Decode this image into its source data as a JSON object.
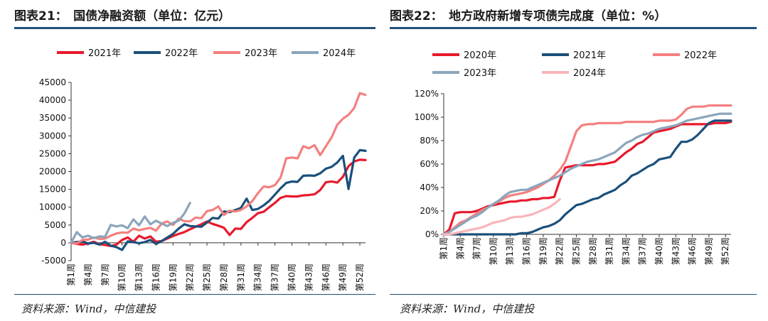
{
  "left": {
    "title": "图表21：　国债净融资额（单位：亿元）",
    "source": "资料来源：Wind，中信建投"
  },
  "right": {
    "title": "图表22：　地方政府新增专项债完成度（单位：%）",
    "source": "资料来源：Wind，中信建投"
  },
  "colors": {
    "accent": "#1f4e79"
  },
  "chart_data": [
    {
      "type": "line",
      "title": "国债净融资额（单位：亿元）",
      "ylim": [
        -5000,
        45000
      ],
      "yticks": [
        -5000,
        0,
        5000,
        10000,
        15000,
        20000,
        25000,
        30000,
        35000,
        40000,
        45000
      ],
      "ytick_labels": [
        "-5000",
        "0",
        "5000",
        "10000",
        "15000",
        "20000",
        "25000",
        "30000",
        "35000",
        "40000",
        "45000"
      ],
      "x_range": [
        1,
        53
      ],
      "xticks": [
        1,
        4,
        7,
        10,
        13,
        16,
        19,
        22,
        25,
        28,
        31,
        34,
        37,
        40,
        43,
        46,
        49,
        52
      ],
      "xtick_labels": [
        "第1周",
        "第4周",
        "第7周",
        "第10周",
        "第13周",
        "第16周",
        "第19周",
        "第22周",
        "第25周",
        "第28周",
        "第31周",
        "第34周",
        "第37周",
        "第40周",
        "第43周",
        "第46周",
        "第49周",
        "第52周"
      ],
      "legend_position": "top",
      "series": [
        {
          "name": "2021年",
          "color": "#e8192c",
          "x": [
            1,
            2,
            3,
            4,
            5,
            6,
            7,
            8,
            9,
            10,
            11,
            12,
            13,
            14,
            15,
            16,
            17,
            18,
            19,
            20,
            21,
            22,
            23,
            24,
            25,
            26,
            27,
            28,
            29,
            30,
            31,
            32,
            33,
            34,
            35,
            36,
            37,
            38,
            39,
            40,
            41,
            42,
            43,
            44,
            45,
            46,
            47,
            48,
            49,
            50,
            51,
            52,
            53
          ],
          "y": [
            0,
            -300,
            -500,
            -200,
            300,
            -400,
            -600,
            -900,
            -500,
            800,
            1500,
            300,
            2000,
            1200,
            1800,
            300,
            500,
            1200,
            1900,
            2500,
            3000,
            3800,
            4500,
            5200,
            6000,
            5300,
            4800,
            4200,
            2200,
            4000,
            3900,
            5800,
            7000,
            8300,
            8700,
            10000,
            11200,
            12600,
            13100,
            13000,
            13000,
            13300,
            13400,
            13600,
            14800,
            17000,
            17200,
            16900,
            18500,
            21500,
            22800,
            23300,
            23200
          ]
        },
        {
          "name": "2022年",
          "color": "#1b4f7a",
          "x": [
            1,
            2,
            3,
            4,
            5,
            6,
            7,
            8,
            9,
            10,
            11,
            12,
            13,
            14,
            15,
            16,
            17,
            18,
            19,
            20,
            21,
            22,
            23,
            24,
            25,
            26,
            27,
            28,
            29,
            30,
            31,
            32,
            33,
            34,
            35,
            36,
            37,
            38,
            39,
            40,
            41,
            42,
            43,
            44,
            45,
            46,
            47,
            48,
            49,
            50,
            51,
            52,
            53
          ],
          "y": [
            0,
            200,
            400,
            -200,
            0,
            -500,
            300,
            -800,
            -1200,
            -2000,
            400,
            200,
            -100,
            200,
            800,
            -300,
            500,
            1500,
            2500,
            4000,
            5200,
            4700,
            4600,
            4500,
            5700,
            7000,
            6800,
            8800,
            8600,
            9200,
            9800,
            12400,
            9200,
            9500,
            10500,
            11800,
            13500,
            15300,
            16800,
            17200,
            17100,
            18800,
            18900,
            18800,
            19500,
            20800,
            21300,
            22500,
            24400,
            15100,
            23900,
            26000,
            25800
          ]
        },
        {
          "name": "2023年",
          "color": "#f4807f",
          "x": [
            1,
            2,
            3,
            4,
            5,
            6,
            7,
            8,
            9,
            10,
            11,
            12,
            13,
            14,
            15,
            16,
            17,
            18,
            19,
            20,
            21,
            22,
            23,
            24,
            25,
            26,
            27,
            28,
            29,
            30,
            31,
            32,
            33,
            34,
            35,
            36,
            37,
            38,
            39,
            40,
            41,
            42,
            43,
            44,
            45,
            46,
            47,
            48,
            49,
            50,
            51,
            52,
            53
          ],
          "y": [
            0,
            -200,
            800,
            900,
            1500,
            1100,
            1200,
            2000,
            2600,
            2900,
            2800,
            4000,
            3500,
            3900,
            4200,
            3400,
            5400,
            6000,
            5000,
            6800,
            6100,
            6000,
            7100,
            6900,
            8900,
            9200,
            10200,
            7800,
            9000,
            8800,
            9200,
            10200,
            11700,
            13900,
            15800,
            15600,
            16200,
            18300,
            23700,
            23900,
            23700,
            27100,
            26500,
            27400,
            24600,
            27100,
            29500,
            33100,
            34800,
            35900,
            37800,
            42000,
            41500
          ]
        },
        {
          "name": "2024年",
          "color": "#8ba5bb",
          "x": [
            1,
            2,
            3,
            4,
            5,
            6,
            7,
            8,
            9,
            10,
            11,
            12,
            13,
            14,
            15,
            16,
            17,
            18,
            19,
            20,
            21,
            22
          ],
          "y": [
            0,
            3000,
            1500,
            2000,
            1300,
            1800,
            1700,
            5000,
            4600,
            4900,
            4100,
            6600,
            4900,
            7400,
            5200,
            6200,
            5400,
            4700,
            5600,
            6200,
            8200,
            11200
          ]
        }
      ]
    },
    {
      "type": "line",
      "title": "地方政府新增专项债完成度（单位：%）",
      "ylim": [
        0,
        120
      ],
      "yticks": [
        0,
        20,
        40,
        60,
        80,
        100,
        120
      ],
      "ytick_labels": [
        "0%",
        "20%",
        "40%",
        "60%",
        "80%",
        "100%",
        "120%"
      ],
      "x_range": [
        1,
        53
      ],
      "xticks": [
        1,
        4,
        7,
        10,
        13,
        16,
        19,
        22,
        25,
        28,
        31,
        34,
        37,
        40,
        43,
        46,
        49,
        52
      ],
      "xtick_labels": [
        "第1周",
        "第4周",
        "第7周",
        "第10周",
        "第13周",
        "第16周",
        "第19周",
        "第22周",
        "第25周",
        "第28周",
        "第31周",
        "第34周",
        "第37周",
        "第40周",
        "第43周",
        "第46周",
        "第49周",
        "第52周"
      ],
      "legend_position": "top",
      "series": [
        {
          "name": "2020年",
          "color": "#e8192c",
          "x": [
            1,
            2,
            3,
            4,
            5,
            6,
            7,
            8,
            9,
            10,
            11,
            12,
            13,
            14,
            15,
            16,
            17,
            18,
            19,
            20,
            21,
            22,
            23,
            24,
            25,
            26,
            27,
            28,
            29,
            30,
            31,
            32,
            33,
            34,
            35,
            36,
            37,
            38,
            39,
            40,
            41,
            42,
            43,
            44,
            45,
            46,
            47,
            48,
            49,
            50,
            51,
            52,
            53
          ],
          "y": [
            0,
            4,
            18,
            19,
            19,
            19,
            20,
            22,
            24,
            25,
            26,
            27,
            28,
            28,
            29,
            29,
            30,
            30,
            31,
            31,
            32,
            46,
            57,
            58,
            59,
            59,
            59,
            59,
            60,
            60,
            61,
            62,
            66,
            70,
            73,
            77,
            79,
            83,
            87,
            88,
            89,
            90,
            92,
            94,
            94,
            94,
            94,
            94,
            94,
            95,
            95,
            95,
            96
          ]
        },
        {
          "name": "2021年",
          "color": "#1b4f7a",
          "x": [
            1,
            2,
            3,
            4,
            5,
            6,
            7,
            8,
            9,
            10,
            11,
            12,
            13,
            14,
            15,
            16,
            17,
            18,
            19,
            20,
            21,
            22,
            23,
            24,
            25,
            26,
            27,
            28,
            29,
            30,
            31,
            32,
            33,
            34,
            35,
            36,
            37,
            38,
            39,
            40,
            41,
            42,
            43,
            44,
            45,
            46,
            47,
            48,
            49,
            50,
            51,
            52,
            53
          ],
          "y": [
            0,
            0,
            0,
            0,
            0,
            0,
            0,
            0,
            0,
            0,
            0,
            0,
            0,
            0,
            1,
            1,
            2,
            4,
            6,
            7,
            9,
            12,
            17,
            21,
            25,
            26,
            28,
            30,
            31,
            34,
            36,
            38,
            42,
            45,
            50,
            52,
            55,
            58,
            60,
            64,
            65,
            66,
            73,
            79,
            79,
            81,
            85,
            90,
            95,
            97,
            97,
            97,
            97
          ]
        },
        {
          "name": "2022年",
          "color": "#f4807f",
          "x": [
            1,
            2,
            3,
            4,
            5,
            6,
            7,
            8,
            9,
            10,
            11,
            12,
            13,
            14,
            15,
            16,
            17,
            18,
            19,
            20,
            21,
            22,
            23,
            24,
            25,
            26,
            27,
            28,
            29,
            30,
            31,
            32,
            33,
            34,
            35,
            36,
            37,
            38,
            39,
            40,
            41,
            42,
            43,
            44,
            45,
            46,
            47,
            48,
            49,
            50,
            51,
            52,
            53
          ],
          "y": [
            0,
            2,
            6,
            10,
            12,
            15,
            18,
            21,
            23,
            26,
            28,
            31,
            33,
            34,
            35,
            36,
            38,
            40,
            43,
            46,
            50,
            55,
            62,
            75,
            88,
            93,
            94,
            94,
            95,
            95,
            95,
            95,
            95,
            96,
            96,
            96,
            96,
            96,
            96,
            97,
            97,
            97,
            98,
            102,
            107,
            109,
            109,
            109,
            110,
            110,
            110,
            110,
            110
          ]
        },
        {
          "name": "2023年",
          "color": "#8ba5bb",
          "x": [
            1,
            2,
            3,
            4,
            5,
            6,
            7,
            8,
            9,
            10,
            11,
            12,
            13,
            14,
            15,
            16,
            17,
            18,
            19,
            20,
            21,
            22,
            23,
            24,
            25,
            26,
            27,
            28,
            29,
            30,
            31,
            32,
            33,
            34,
            35,
            36,
            37,
            38,
            39,
            40,
            41,
            42,
            43,
            44,
            45,
            46,
            47,
            48,
            49,
            50,
            51,
            52,
            53
          ],
          "y": [
            0,
            2,
            5,
            8,
            11,
            14,
            16,
            19,
            23,
            26,
            29,
            33,
            36,
            37,
            38,
            38,
            40,
            42,
            44,
            46,
            48,
            50,
            53,
            56,
            58,
            60,
            62,
            63,
            64,
            66,
            68,
            70,
            74,
            78,
            80,
            83,
            85,
            86,
            88,
            90,
            91,
            92,
            93,
            95,
            97,
            98,
            99,
            100,
            101,
            102,
            103,
            103,
            103
          ]
        },
        {
          "name": "2024年",
          "color": "#f7b5b9",
          "x": [
            1,
            2,
            3,
            4,
            5,
            6,
            7,
            8,
            9,
            10,
            11,
            12,
            13,
            14,
            15,
            16,
            17,
            18,
            19,
            20,
            21,
            22
          ],
          "y": [
            0,
            0,
            1,
            2,
            3,
            4,
            5,
            6,
            8,
            10,
            11,
            12,
            14,
            15,
            15,
            16,
            17,
            19,
            21,
            23,
            26,
            30
          ]
        }
      ]
    }
  ]
}
